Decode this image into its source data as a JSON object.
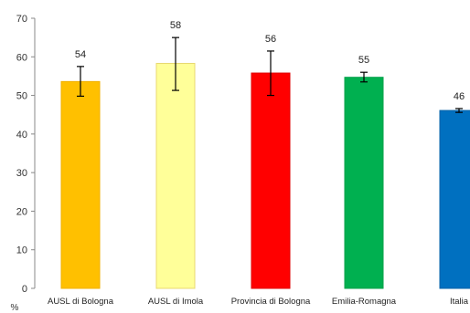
{
  "chart_data": {
    "type": "bar",
    "categories": [
      "AUSL di Bologna",
      "AUSL di Imola",
      "Provincia di Bologna",
      "Emilia-Romagna",
      "Italia"
    ],
    "values": [
      54,
      58,
      56,
      55,
      46
    ],
    "bar_values_precise": [
      53.6,
      58.3,
      55.8,
      54.7,
      46.1
    ],
    "data_labels": [
      "54",
      "58",
      "56",
      "55",
      "46"
    ],
    "error_bars": [
      {
        "low": 49.8,
        "high": 57.5
      },
      {
        "low": 51.3,
        "high": 65.0
      },
      {
        "low": 50.0,
        "high": 61.5
      },
      {
        "low": 53.5,
        "high": 56.0
      },
      {
        "low": 45.6,
        "high": 46.6
      }
    ],
    "colors": [
      "#FFC000",
      "#FFFF99",
      "#FF0000",
      "#00B050",
      "#0070C0"
    ],
    "stroke_colors": [
      "#F0B000",
      "#E8D870",
      "#E00000",
      "#00A048",
      "#0060A8"
    ],
    "y_ticks": [
      0,
      10,
      20,
      30,
      40,
      50,
      60,
      70
    ],
    "ylim": [
      0,
      70
    ],
    "ylabel": "%",
    "title": "",
    "xlabel": "",
    "grid": false,
    "legend": "none"
  }
}
